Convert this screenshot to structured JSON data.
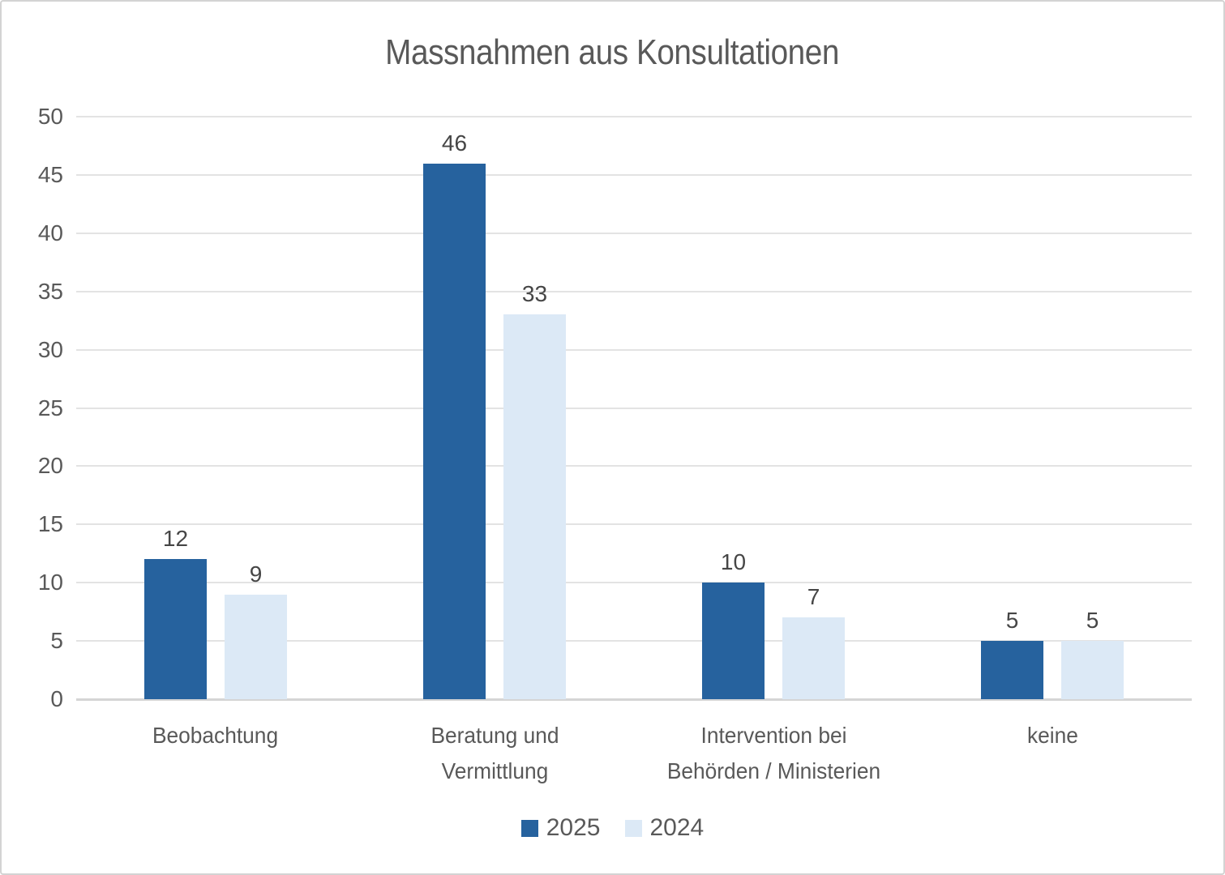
{
  "chart_data": {
    "type": "bar",
    "title": "Massnahmen aus Konsultationen",
    "categories": [
      "Beobachtung",
      "Beratung und Vermittlung",
      "Intervention bei Behörden / Ministerien",
      "keine"
    ],
    "series": [
      {
        "name": "2025",
        "color": "#26629e",
        "values": [
          12,
          46,
          10,
          5
        ]
      },
      {
        "name": "2024",
        "color": "#dce9f6",
        "values": [
          9,
          33,
          7,
          5
        ]
      }
    ],
    "ylim": [
      0,
      50
    ],
    "ytick_step": 5,
    "yticks": [
      0,
      5,
      10,
      15,
      20,
      25,
      30,
      35,
      40,
      45,
      50
    ],
    "grid": true,
    "data_labels": true,
    "legend_position": "bottom"
  },
  "colors": {
    "text_gray": "#595959",
    "value_label": "#464646",
    "gridline": "#e3e3e3",
    "baseline": "#d5d5d5",
    "frame_border": "#d3d3d3",
    "background": "#ffffff"
  }
}
